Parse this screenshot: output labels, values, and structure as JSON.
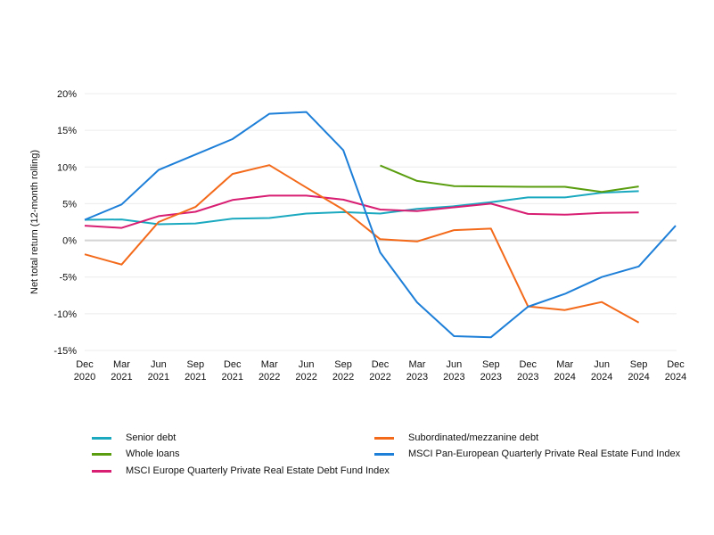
{
  "chart_data": {
    "type": "line",
    "title": "",
    "xlabel": "",
    "ylabel": "Net total return (12-month rolling)",
    "ylim": [
      -15,
      20
    ],
    "yticks": [
      20,
      15,
      10,
      5,
      0,
      -5,
      -10,
      -15
    ],
    "ytick_labels": [
      "20%",
      "15%",
      "10%",
      "5%",
      "0%",
      "-5%",
      "-10%",
      "-15%"
    ],
    "grid": true,
    "categories": [
      [
        "Dec",
        "2020"
      ],
      [
        "Mar",
        "2021"
      ],
      [
        "Jun",
        "2021"
      ],
      [
        "Sep",
        "2021"
      ],
      [
        "Dec",
        "2021"
      ],
      [
        "Mar",
        "2022"
      ],
      [
        "Jun",
        "2022"
      ],
      [
        "Sep",
        "2022"
      ],
      [
        "Dec",
        "2022"
      ],
      [
        "Mar",
        "2023"
      ],
      [
        "Jun",
        "2023"
      ],
      [
        "Sep",
        "2023"
      ],
      [
        "Dec",
        "2023"
      ],
      [
        "Mar",
        "2024"
      ],
      [
        "Jun",
        "2024"
      ],
      [
        "Sep",
        "2024"
      ],
      [
        "Dec",
        "2024"
      ]
    ],
    "legend_position": "bottom",
    "series": [
      {
        "name": "Senior debt",
        "color": "#1BA9C0",
        "values": [
          2.8,
          2.85,
          2.2,
          2.3,
          2.95,
          3.05,
          3.65,
          3.85,
          3.65,
          4.3,
          4.65,
          5.2,
          5.85,
          5.85,
          6.5,
          6.7,
          null
        ]
      },
      {
        "name": "Subordinated/mezzanine debt",
        "color": "#F46A1B",
        "values": [
          -1.9,
          -3.3,
          2.5,
          4.55,
          9.05,
          10.25,
          7.2,
          4.2,
          0.15,
          -0.15,
          1.4,
          1.6,
          -9.0,
          -9.5,
          -8.4,
          -11.2,
          null
        ]
      },
      {
        "name": "Whole loans",
        "color": "#5A9E0F",
        "values": [
          null,
          null,
          null,
          null,
          null,
          null,
          null,
          null,
          10.2,
          8.1,
          7.4,
          7.35,
          7.3,
          7.3,
          6.6,
          7.35,
          null
        ]
      },
      {
        "name": "MSCI Pan-European Quarterly Private Real Estate Fund Index",
        "color": "#1E7FD8",
        "values": [
          2.8,
          4.9,
          9.6,
          11.7,
          13.8,
          17.25,
          17.5,
          12.3,
          -1.65,
          -8.45,
          -13.05,
          -13.2,
          -9.05,
          -7.3,
          -5.0,
          -3.55,
          2.0
        ]
      },
      {
        "name": "MSCI Europe Quarterly Private Real Estate Debt Fund Index",
        "color": "#D81E73",
        "values": [
          2.0,
          1.7,
          3.3,
          3.9,
          5.5,
          6.1,
          6.1,
          5.55,
          4.2,
          4.0,
          4.5,
          5.0,
          3.6,
          3.5,
          3.75,
          3.8,
          null
        ]
      }
    ],
    "legend": [
      {
        "name": "Senior debt",
        "color": "#1BA9C0"
      },
      {
        "name": "Subordinated/mezzanine debt",
        "color": "#F46A1B"
      },
      {
        "name": "Whole loans",
        "color": "#5A9E0F"
      },
      {
        "name": "MSCI Pan-European Quarterly Private Real Estate Fund Index",
        "color": "#1E7FD8"
      },
      {
        "name": "MSCI Europe Quarterly Private Real Estate Debt Fund Index",
        "color": "#D81E73"
      }
    ]
  }
}
